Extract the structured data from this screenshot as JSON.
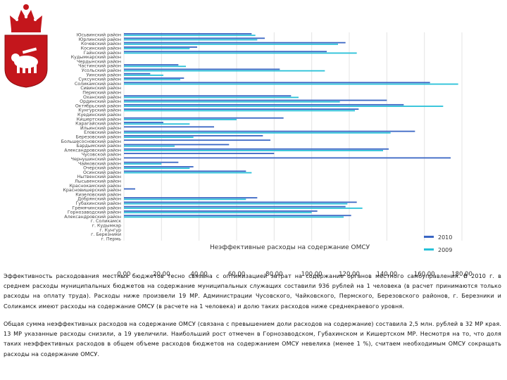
{
  "colors": {
    "series_2010": "#3a66c4",
    "series_2009": "#27c1d8",
    "coat_shield": "#c4161c",
    "coat_bear": "#ffffff",
    "crown": "#c4161c"
  },
  "chart_data": {
    "type": "bar",
    "orientation": "horizontal",
    "annotation": "Неэффективные расходы на содержание ОМСУ",
    "categories": [
      "Юсьвинский район",
      "Юрлинский район",
      "Кочевский район",
      "Косинский район",
      "Гайнский район",
      "Кудымкарский район",
      "Чердынский район",
      "Частинский район",
      "Усольский район",
      "Уинский район",
      "Суксунский район",
      "Соликамский район",
      "Сивинский район",
      "Пермский район",
      "Оханский район",
      "Ординский район",
      "Октябрьский район",
      "Кунгурский район",
      "Куединский район",
      "Кишертский район",
      "Карагайский район",
      "Ильинский район",
      "Еловский район",
      "Березовский район",
      "Большесосновский район",
      "Бардымский район",
      "Александровский район",
      "Чусовской район",
      "Чернушинский район",
      "Чайковский район",
      "Очерский район",
      "Осинский район",
      "Нытвенский район",
      "Лысьвенский район",
      "Краснокамский район",
      "Красновишерский район",
      "Кизеловский район",
      "Добрянский район",
      "Губахинский район",
      "Гремячинский район",
      "Горнозаводский район",
      "Александровский район",
      "г. Соликамск",
      "г. Кудымкар",
      "г. Кунгур",
      "г. Березники",
      "г. Пермь"
    ],
    "series": [
      {
        "name": "2010",
        "values": [
          68,
          75,
          118,
          39,
          108,
          0,
          0,
          29,
          83,
          14,
          32,
          163,
          0,
          0,
          89,
          140,
          149,
          125,
          0,
          85,
          21,
          48,
          155,
          74,
          78,
          56,
          141,
          80,
          174,
          29,
          37,
          65,
          0,
          0,
          0,
          6,
          0,
          71,
          124,
          118,
          103,
          121,
          0,
          0,
          0,
          0,
          0
        ]
      },
      {
        "name": "2009",
        "values": [
          70,
          71,
          114,
          35,
          124,
          0,
          0,
          33,
          107,
          21,
          30,
          178,
          0,
          0,
          93,
          115,
          170,
          123,
          0,
          60,
          35,
          0,
          142,
          37,
          0,
          27,
          138,
          0,
          0,
          20,
          35,
          68,
          0,
          0,
          0,
          0,
          0,
          65,
          119,
          127,
          100,
          117,
          0,
          0,
          0,
          0,
          0
        ]
      }
    ],
    "legend": [
      "2010",
      "2009"
    ],
    "legend_position": "bottom-right",
    "xlim": [
      0,
      180
    ],
    "xticks": [
      "0,00",
      "20,00",
      "40,00",
      "60,00",
      "80,00",
      "100,00",
      "120,00",
      "140,00",
      "160,00",
      "180,00"
    ],
    "xlabel": "",
    "ylabel": "",
    "grid": true
  },
  "text": {
    "paragraph1": "Эффективность расходования местных бюджетов тесно связана с оптимизацией затрат на содержание органов местного самоуправления. В 2010 г. в среднем расходы муниципальных бюджетов на содержание муниципальных служащих составили 936 рублей на 1 человека (в расчет принимаются только расходы на оплату труда). Расходы ниже произвели 19 МР. Администрации Чусовского, Чайковского, Пермского, Березовского районов, г. Березники и Соликамск имеют расходы на содержание ОМСУ (в расчете на 1 человека) и долю таких расходов ниже среднекраевого уровня.",
    "paragraph2": "Общая сумма неэффективных расходов на содержание ОМСУ (связана с превышением доли расходов на содержание) составила 2,5 млн. рублей в 32 МР края. 13 МР указанные расходы снизили, а 19 увеличили. Наибольший рост отмечен в Горнозаводском, Губахинском и Кишертском МР. Несмотря на то, что доля таких неэффективных расходов в общем объеме расходов бюджетов на содержанием ОМСУ невелика (менее 1 %), считаем необходимым ОМСУ сокращать расходы на содержание ОМСУ."
  }
}
